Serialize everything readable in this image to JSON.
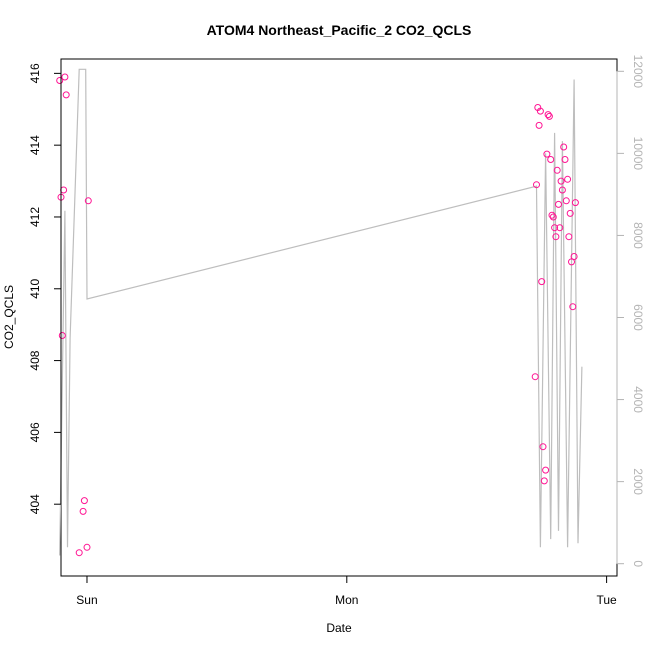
{
  "chart_data": {
    "type": "scatter",
    "title": "ATOM4 Northeast_Pacific_2 CO2_QCLS",
    "xlabel": "Date",
    "ylabel": "CO2_QCLS",
    "x_tick_labels": [
      "Sun",
      "Mon",
      "Tue"
    ],
    "x_tick_values": [
      0,
      1,
      2
    ],
    "xlim": [
      -0.1,
      2.04
    ],
    "ylim": [
      402.0,
      416.4
    ],
    "y_ticks": [
      404,
      406,
      408,
      410,
      412,
      414,
      416
    ],
    "y2lim": [
      -300,
      12300
    ],
    "y2_ticks": [
      0,
      2000,
      4000,
      6000,
      8000,
      10000,
      12000
    ],
    "grid": false,
    "point_color": "#ff1493",
    "line_color": "#bebebe",
    "axis2_color": "#b4b4b4",
    "series": [
      {
        "type": "scatter",
        "axis": "left",
        "points": [
          [
            -0.105,
            415.8
          ],
          [
            -0.1,
            412.55
          ],
          [
            -0.095,
            408.7
          ],
          [
            -0.09,
            412.75
          ],
          [
            -0.085,
            415.9
          ],
          [
            -0.08,
            415.4
          ],
          [
            -0.03,
            402.65
          ],
          [
            -0.015,
            403.8
          ],
          [
            -0.01,
            404.1
          ],
          [
            0.0,
            402.8
          ],
          [
            0.005,
            412.45
          ],
          [
            1.725,
            407.55
          ],
          [
            1.73,
            412.9
          ],
          [
            1.735,
            415.05
          ],
          [
            1.74,
            414.55
          ],
          [
            1.745,
            414.95
          ],
          [
            1.75,
            410.2
          ],
          [
            1.755,
            405.6
          ],
          [
            1.76,
            404.65
          ],
          [
            1.765,
            404.95
          ],
          [
            1.77,
            413.75
          ],
          [
            1.775,
            414.85
          ],
          [
            1.78,
            414.8
          ],
          [
            1.785,
            413.6
          ],
          [
            1.79,
            412.05
          ],
          [
            1.795,
            412.0
          ],
          [
            1.8,
            411.7
          ],
          [
            1.805,
            411.45
          ],
          [
            1.81,
            413.3
          ],
          [
            1.815,
            412.35
          ],
          [
            1.82,
            411.7
          ],
          [
            1.825,
            413.0
          ],
          [
            1.83,
            412.75
          ],
          [
            1.835,
            413.95
          ],
          [
            1.84,
            413.6
          ],
          [
            1.845,
            412.45
          ],
          [
            1.85,
            413.05
          ],
          [
            1.855,
            411.45
          ],
          [
            1.86,
            412.1
          ],
          [
            1.865,
            410.75
          ],
          [
            1.87,
            409.5
          ],
          [
            1.875,
            410.9
          ],
          [
            1.88,
            412.4
          ]
        ]
      },
      {
        "type": "line",
        "axis": "right",
        "points": [
          [
            -0.105,
            200
          ],
          [
            -0.085,
            8600
          ],
          [
            -0.075,
            400
          ],
          [
            -0.065,
            5500
          ],
          [
            -0.03,
            12050
          ],
          [
            -0.005,
            12050
          ],
          [
            0.0,
            6450
          ],
          [
            1.73,
            9200
          ],
          [
            1.745,
            400
          ],
          [
            1.765,
            10000
          ],
          [
            1.785,
            600
          ],
          [
            1.8,
            10500
          ],
          [
            1.815,
            800
          ],
          [
            1.83,
            10300
          ],
          [
            1.85,
            400
          ],
          [
            1.875,
            11800
          ],
          [
            1.89,
            500
          ],
          [
            1.905,
            4800
          ]
        ]
      }
    ]
  }
}
